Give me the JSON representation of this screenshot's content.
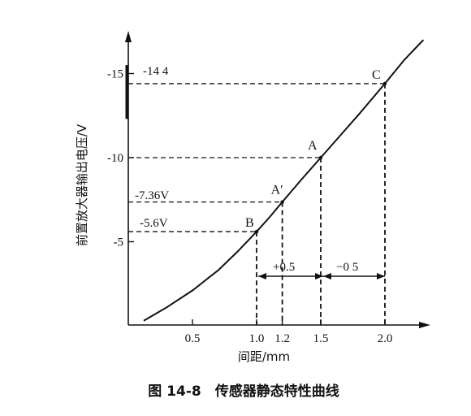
{
  "chart_data": {
    "type": "line",
    "xlabel": "间距/mm",
    "ylabel": "前置放大器输出电压/V",
    "caption": "图 14-8　传感器静态特性曲线",
    "x_ticks": [
      "0.5",
      "1.0",
      "1.2",
      "1.5",
      "2.0"
    ],
    "x_tick_values": [
      0.5,
      1.0,
      1.2,
      1.5,
      2.0
    ],
    "y_ticks": [
      "-5",
      "-10",
      "-15"
    ],
    "y_tick_values": [
      -5,
      -10,
      -15
    ],
    "xlim": [
      0,
      2.4
    ],
    "ylim": [
      0,
      -18
    ],
    "curve": {
      "x": [
        0.1,
        0.3,
        0.5,
        0.7,
        0.9,
        1.0,
        1.1,
        1.2,
        1.3,
        1.4,
        1.5,
        1.6,
        1.7,
        1.8,
        1.9,
        2.0,
        2.1,
        2.2,
        2.3
      ],
      "y": [
        -0.3,
        -1.2,
        -2.1,
        -3.2,
        -4.7,
        -5.6,
        -6.4,
        -7.36,
        -8.3,
        -9.2,
        -10.0,
        -11.1,
        -12.2,
        -13.3,
        -14.4,
        -14.4,
        -15.6,
        -16.8,
        -18.0
      ]
    },
    "points": [
      {
        "label": "B",
        "x": 1.0,
        "y": -5.6
      },
      {
        "label": "A′",
        "x": 1.2,
        "y": -7.36
      },
      {
        "label": "A",
        "x": 1.5,
        "y": -10.0
      },
      {
        "label": "C",
        "x": 2.0,
        "y": -14.4
      }
    ],
    "annotations": {
      "v_144": "-14 4",
      "v_736": "-7.36V",
      "v_56": "-5.6V",
      "plus_05": "+0.5",
      "minus_05": "−0 5"
    },
    "grid": false
  }
}
